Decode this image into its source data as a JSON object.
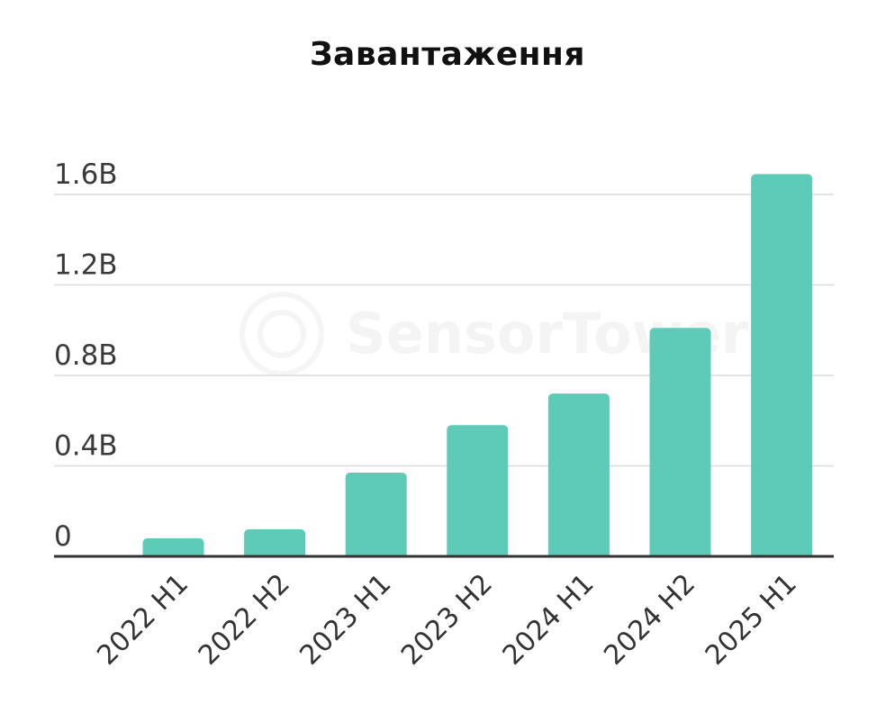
{
  "chart_data": {
    "type": "bar",
    "title": "Завантаження",
    "categories": [
      "2022 H1",
      "2022 H2",
      "2023 H1",
      "2023 H2",
      "2024 H1",
      "2024 H2",
      "2025 H1"
    ],
    "values": [
      0.08,
      0.12,
      0.37,
      0.58,
      0.72,
      1.01,
      1.69
    ],
    "unit": "B",
    "ylim": [
      0,
      1.6
    ],
    "yticks": [
      0,
      0.4,
      0.8,
      1.2,
      1.6
    ],
    "ytick_labels": [
      "0",
      "0.4B",
      "0.8B",
      "1.2B",
      "1.6B"
    ],
    "xlabel": "",
    "ylabel": "",
    "grid": true,
    "bar_color": "#5ecbb8",
    "watermark": "SensorTower"
  }
}
